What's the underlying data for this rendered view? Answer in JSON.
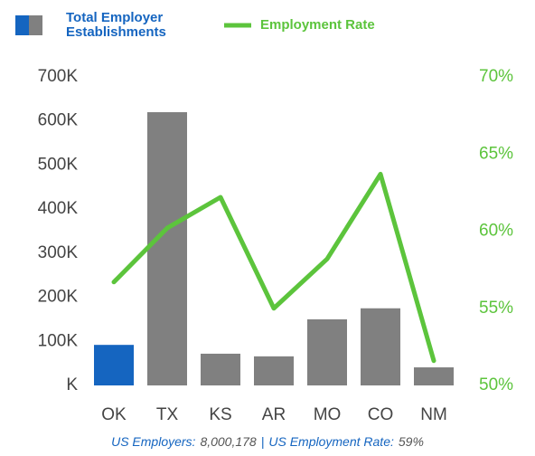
{
  "chart_data": {
    "type": "bar_line",
    "categories": [
      "OK",
      "TX",
      "KS",
      "AR",
      "MO",
      "CO",
      "NM"
    ],
    "series": [
      {
        "name": "Total Employer Establishments",
        "type": "bar",
        "color": "#808080",
        "colors": [
          "#1565c0",
          "#808080",
          "#808080",
          "#808080",
          "#808080",
          "#808080",
          "#808080"
        ],
        "values": [
          92000,
          620000,
          72000,
          66000,
          150000,
          175000,
          41000
        ]
      },
      {
        "name": "Employment Rate",
        "type": "line",
        "axis": "y2",
        "color": "#5cc43c",
        "values": [
          56.7,
          60.2,
          62.2,
          55.0,
          58.2,
          63.7,
          51.6
        ]
      }
    ],
    "ylim": [
      0,
      700000
    ],
    "yticks": [
      {
        "value": 0,
        "label": "K"
      },
      {
        "value": 100000,
        "label": "100K"
      },
      {
        "value": 200000,
        "label": "200K"
      },
      {
        "value": 300000,
        "label": "300K"
      },
      {
        "value": 400000,
        "label": "400K"
      },
      {
        "value": 500000,
        "label": "500K"
      },
      {
        "value": 600000,
        "label": "600K"
      },
      {
        "value": 700000,
        "label": "700K"
      }
    ],
    "y2lim": [
      50,
      70
    ],
    "y2ticks": [
      {
        "value": 50,
        "label": "50%"
      },
      {
        "value": 55,
        "label": "55%"
      },
      {
        "value": 60,
        "label": "60%"
      },
      {
        "value": 65,
        "label": "65%"
      },
      {
        "value": 70,
        "label": "70%"
      }
    ],
    "footnote": [
      "US Employers:",
      "8,000,178",
      "|",
      "US Employment Rate:",
      "59%"
    ]
  }
}
